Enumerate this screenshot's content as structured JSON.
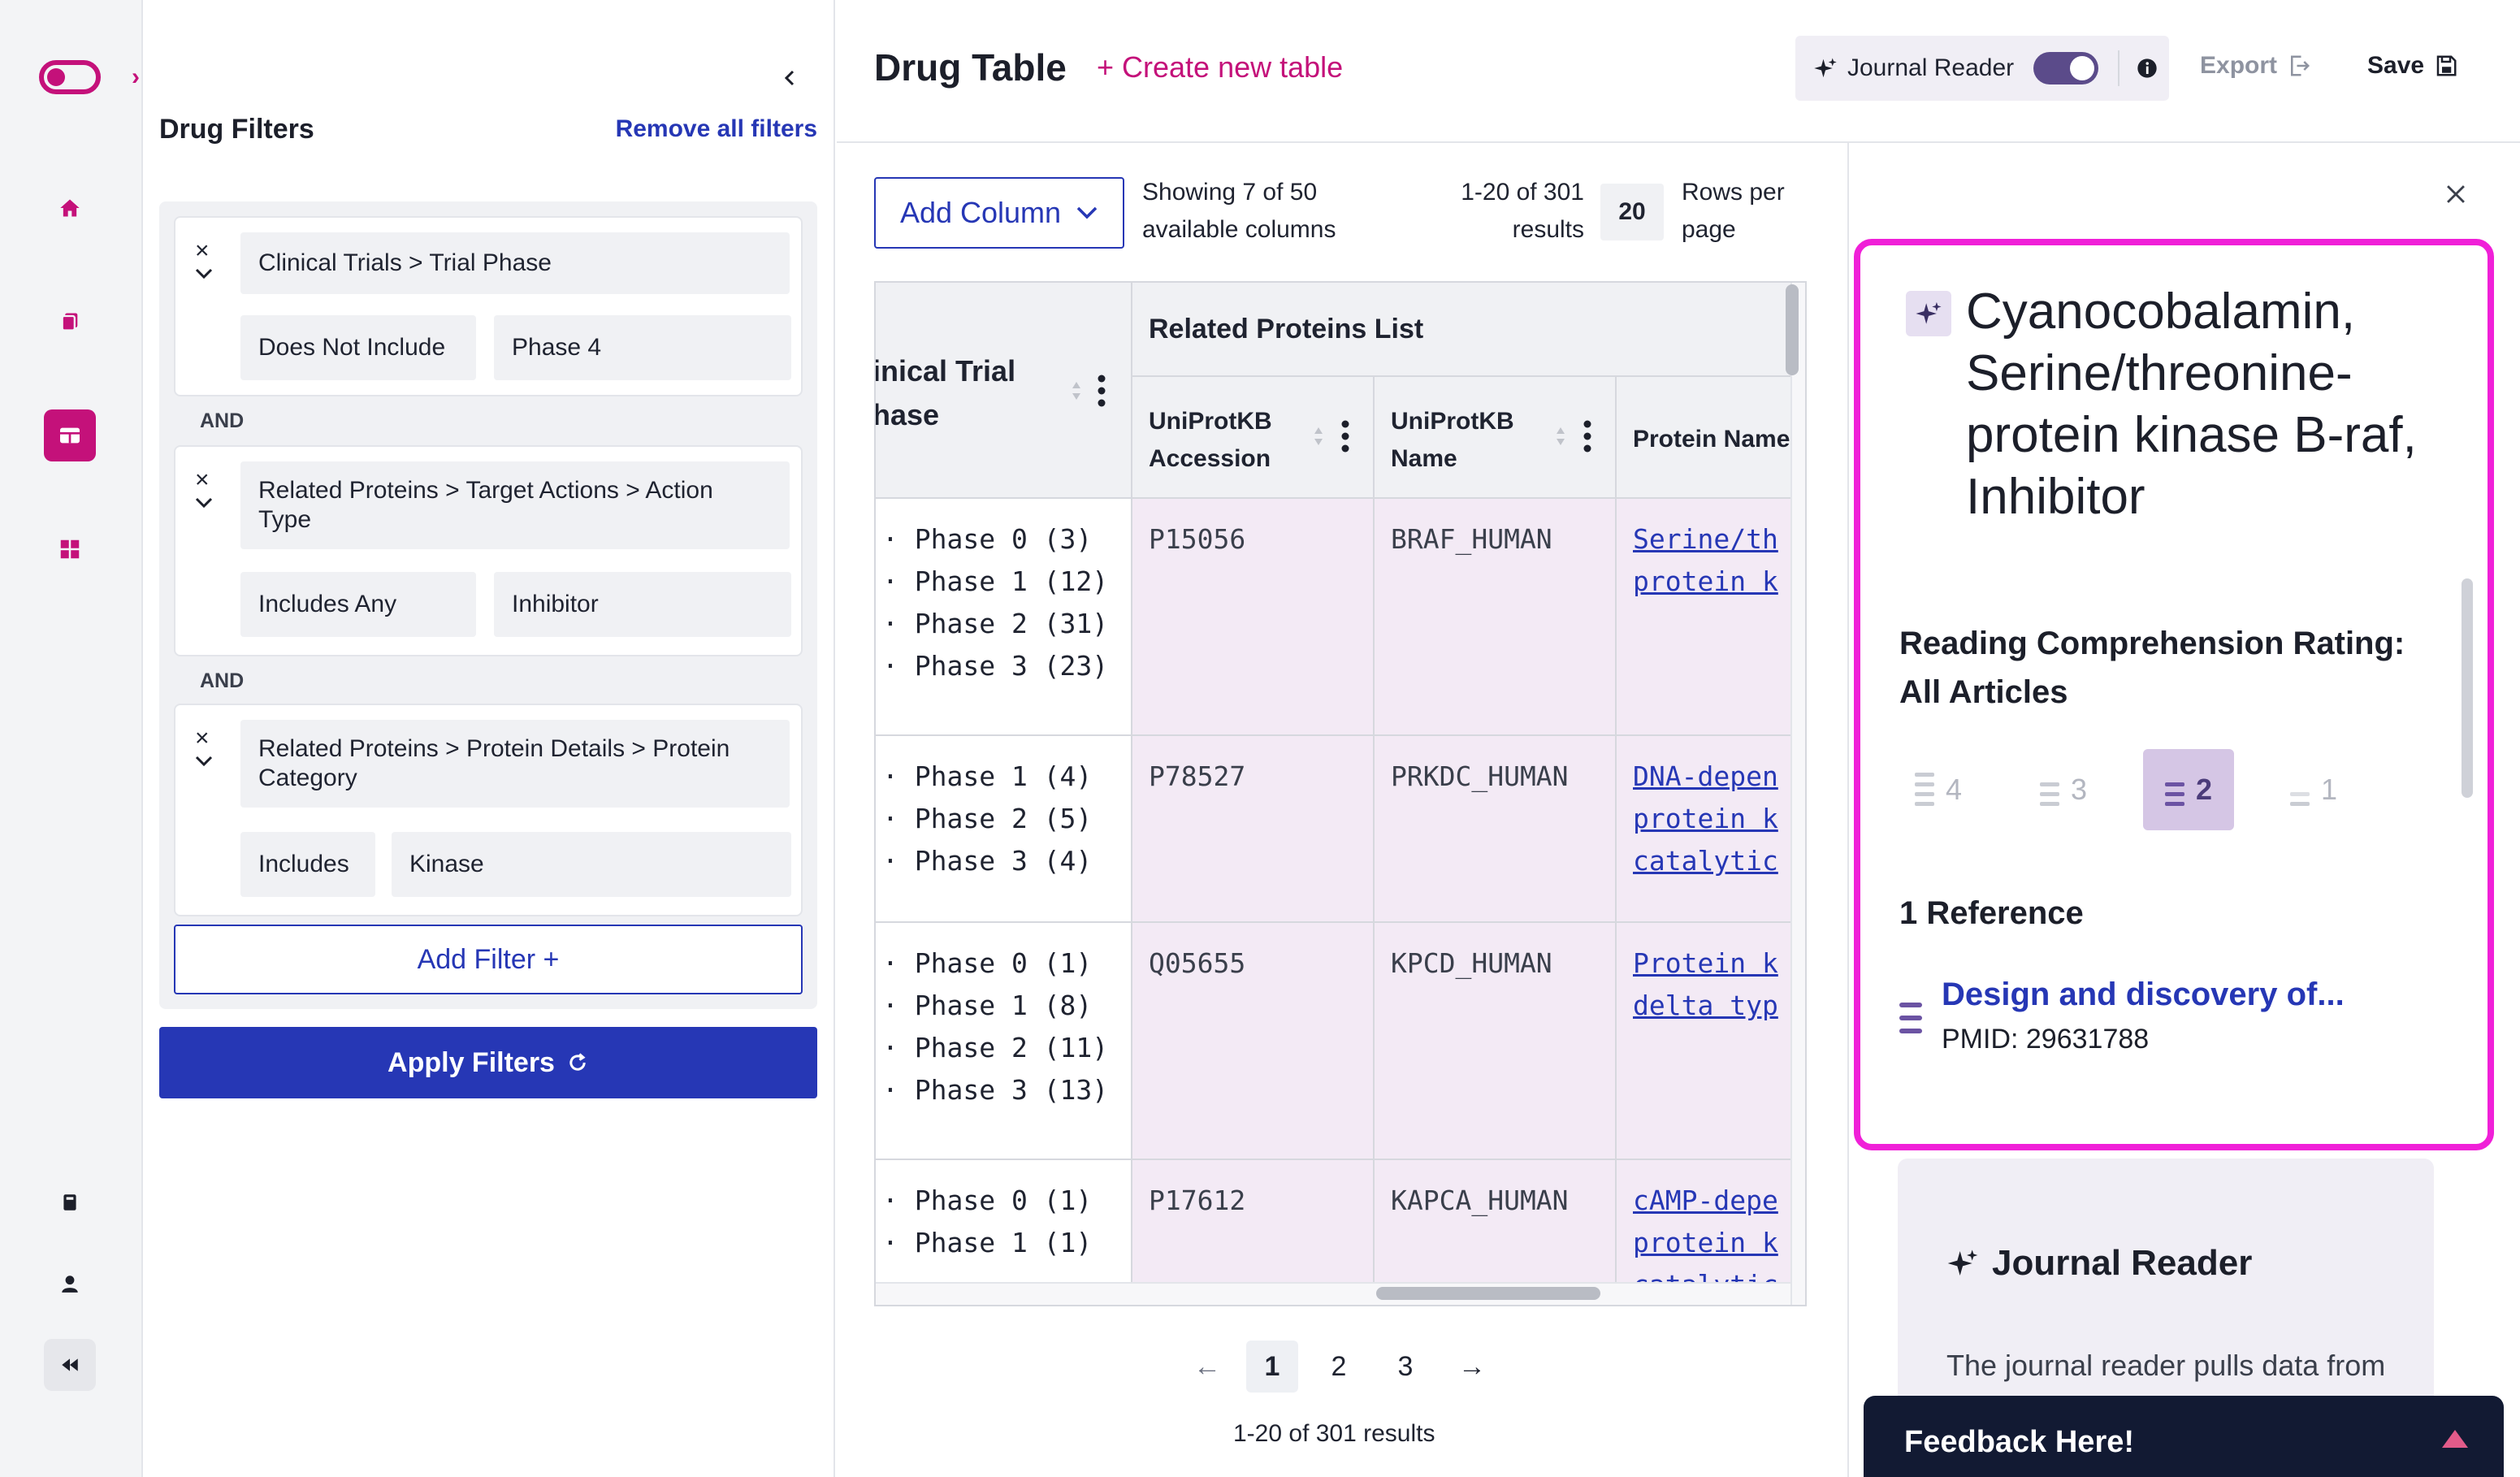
{
  "filters": {
    "title": "Drug Filters",
    "remove_all": "Remove all filters",
    "and_label": "AND",
    "cards": [
      {
        "path": "Clinical Trials > Trial Phase",
        "operator": "Does Not Include",
        "value": "Phase 4"
      },
      {
        "path": "Related Proteins > Target Actions > Action Type",
        "operator": "Includes Any",
        "value": "Inhibitor"
      },
      {
        "path": "Related Proteins > Protein Details > Protein Category",
        "operator": "Includes",
        "value": "Kinase"
      }
    ],
    "add_filter": "Add Filter +",
    "apply": "Apply Filters"
  },
  "header": {
    "title": "Drug Table",
    "create": "+ Create new table",
    "journal_reader": "Journal Reader",
    "export": "Export",
    "save": "Save"
  },
  "table_controls": {
    "add_column": "Add Column",
    "showing_1": "Showing 7 of 50",
    "showing_2": "available columns",
    "results_1": "1-20 of 301",
    "results_2": "results",
    "rows_value": "20",
    "rows_1": "Rows per",
    "rows_2": "page"
  },
  "table": {
    "phase_header_1": "inical Trial",
    "phase_header_2": "hase",
    "group_header": "Related Proteins List",
    "columns": [
      {
        "line1": "UniProtKB",
        "line2": "Accession"
      },
      {
        "line1": "UniProtKB",
        "line2": "Name"
      },
      {
        "line1": "Protein Name",
        "line2": ""
      }
    ],
    "rows": [
      {
        "phases": [
          "· Phase 0 (3)",
          "· Phase 1 (12)",
          "· Phase 2 (31)",
          "· Phase 3 (23)"
        ],
        "accession": "P15056",
        "name": "BRAF_HUMAN",
        "protein": [
          "Serine/th",
          "protein k"
        ]
      },
      {
        "phases": [
          "· Phase 1 (4)",
          "· Phase 2 (5)",
          "· Phase 3 (4)"
        ],
        "accession": "P78527",
        "name": "PRKDC_HUMAN",
        "protein": [
          "DNA-depen",
          "protein k",
          "catalytic"
        ]
      },
      {
        "phases": [
          "· Phase 0 (1)",
          "· Phase 1 (8)",
          "· Phase 2 (11)",
          "· Phase 3 (13)"
        ],
        "accession": "Q05655",
        "name": "KPCD_HUMAN",
        "protein": [
          "Protein k",
          "delta typ"
        ]
      },
      {
        "phases": [
          "· Phase 0 (1)",
          "· Phase 1 (1)"
        ],
        "accession": "P17612",
        "name": "KAPCA_HUMAN",
        "protein": [
          "cAMP-depe",
          "protein k",
          "catalytic"
        ]
      }
    ]
  },
  "pagination": {
    "pages": [
      "1",
      "2",
      "3"
    ],
    "prev": "←",
    "next": "→",
    "results": "1-20 of 301 results"
  },
  "side_panel": {
    "drug_title": "Cyanocobalamin, Serine/threonine-protein kinase B-raf, Inhibitor",
    "rating_title_1": "Reading Comprehension Rating:",
    "rating_title_2": "All Articles",
    "ratings": [
      "4",
      "3",
      "2",
      "1"
    ],
    "references_title": "1 Reference",
    "reference_link": "Design and discovery of...",
    "reference_pmid": "PMID: 29631788",
    "jr_card_title": "Journal Reader",
    "jr_card_text": "The journal reader pulls data from PubMed...",
    "feedback": "Feedback Here!"
  },
  "colors": {
    "brand_pink": "#c4117a",
    "primary_blue": "#2637b5",
    "highlight_magenta": "#f020d8",
    "purple_accent": "#5b4b8a"
  }
}
